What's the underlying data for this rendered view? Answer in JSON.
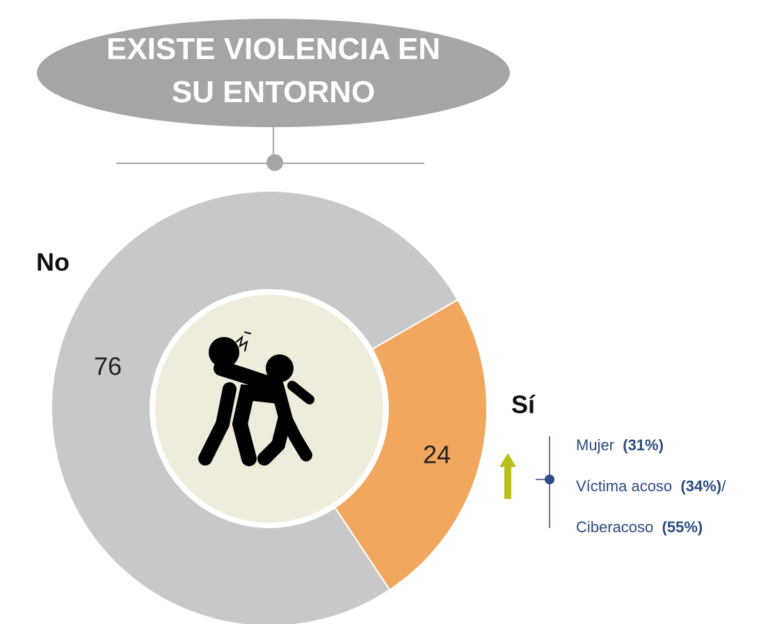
{
  "chart_data": {
    "type": "pie",
    "title": "EXISTE VIOLENCIA EN SU ENTORNO",
    "categories": [
      "No",
      "Sí"
    ],
    "values": [
      76,
      24
    ],
    "colors": [
      "#c8c8c8",
      "#f2a75e"
    ],
    "notes": [
      {
        "label": "Mujer",
        "value_text": "(31%)"
      },
      {
        "label": "Víctima acoso",
        "value_text": "(34%)",
        "suffix": "/"
      },
      {
        "label": "Ciberacoso",
        "value_text": "(55%)"
      }
    ]
  }
}
